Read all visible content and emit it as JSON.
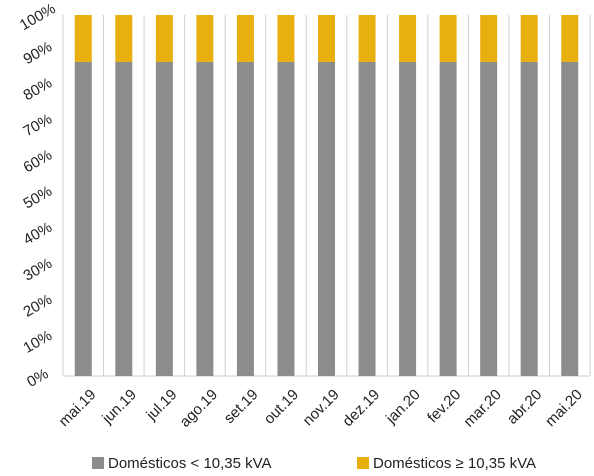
{
  "chart_data": {
    "type": "bar",
    "stacked": true,
    "percent": true,
    "categories": [
      "mai.19",
      "jun.19",
      "jul.19",
      "ago.19",
      "set.19",
      "out.19",
      "nov.19",
      "dez.19",
      "jan.20",
      "fev.20",
      "mar.20",
      "abr.20",
      "mai.20"
    ],
    "series": [
      {
        "name": "Domésticos < 10,35 kVA",
        "color": "#8c8c8c",
        "values": [
          87,
          87,
          87,
          87,
          87,
          87,
          87,
          87,
          87,
          87,
          87,
          87,
          87
        ]
      },
      {
        "name": "Domésticos ≥ 10,35 kVA",
        "color": "#e8b00e",
        "values": [
          13,
          13,
          13,
          13,
          13,
          13,
          13,
          13,
          13,
          13,
          13,
          13,
          13
        ]
      }
    ],
    "y_ticks": [
      "0%",
      "10%",
      "20%",
      "30%",
      "40%",
      "50%",
      "60%",
      "70%",
      "80%",
      "90%",
      "100%"
    ],
    "ylim": [
      0,
      100
    ],
    "grid": "vertical",
    "legend_position": "bottom"
  }
}
